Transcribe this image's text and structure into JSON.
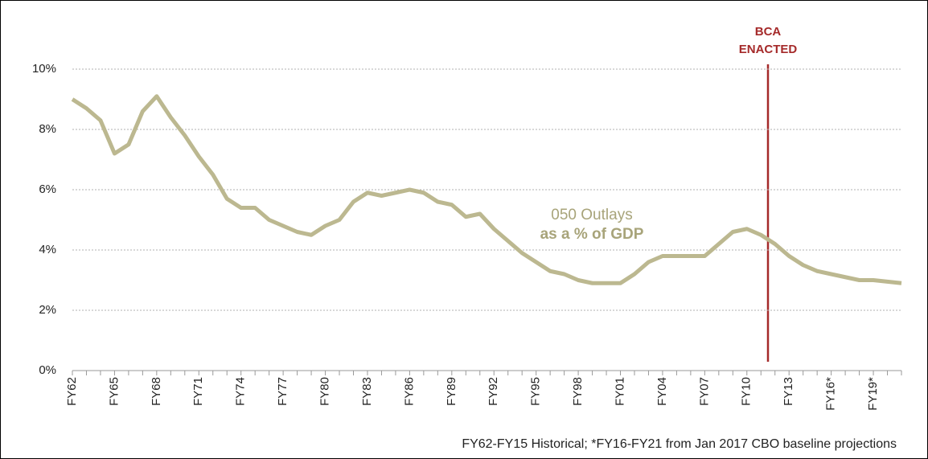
{
  "chart_data": {
    "type": "line",
    "categories": [
      "FY62",
      null,
      null,
      "FY65",
      null,
      null,
      "FY68",
      null,
      null,
      "FY71",
      null,
      null,
      "FY74",
      null,
      null,
      "FY77",
      null,
      null,
      "FY80",
      null,
      null,
      "FY83",
      null,
      null,
      "FY86",
      null,
      null,
      "FY89",
      null,
      null,
      "FY92",
      null,
      null,
      "FY95",
      null,
      null,
      "FY98",
      null,
      null,
      "FY01",
      null,
      null,
      "FY04",
      null,
      null,
      "FY07",
      null,
      null,
      "FY10",
      null,
      null,
      "FY13",
      null,
      null,
      "FY16*",
      null,
      null,
      "FY19*",
      null,
      null
    ],
    "series": [
      {
        "name": "050 Outlays as a % of GDP",
        "color": "#bcb890",
        "values": [
          9.0,
          8.7,
          8.3,
          7.2,
          7.5,
          8.6,
          9.1,
          8.4,
          7.8,
          7.1,
          6.5,
          5.7,
          5.4,
          5.4,
          5.0,
          4.8,
          4.6,
          4.5,
          4.8,
          5.0,
          5.6,
          5.9,
          5.8,
          5.9,
          6.0,
          5.9,
          5.6,
          5.5,
          5.1,
          5.2,
          4.7,
          4.3,
          3.9,
          3.6,
          3.3,
          3.2,
          3.0,
          2.9,
          2.9,
          2.9,
          3.2,
          3.6,
          3.8,
          3.8,
          3.8,
          3.8,
          4.2,
          4.6,
          4.7,
          4.5,
          4.2,
          3.8,
          3.5,
          3.3,
          3.2,
          3.1,
          3.0,
          3.0,
          2.95,
          2.9
        ]
      }
    ],
    "ylim": [
      0,
      11
    ],
    "yticks": [
      {
        "value": 0,
        "label": "0%"
      },
      {
        "value": 2,
        "label": "2%"
      },
      {
        "value": 4,
        "label": "4%"
      },
      {
        "value": 6,
        "label": "6%"
      },
      {
        "value": 8,
        "label": "8%"
      },
      {
        "value": 10,
        "label": "10%"
      }
    ],
    "grid": true,
    "annotations": {
      "event": [
        "BCA",
        "ENACTED"
      ],
      "series_label": [
        "050 Outlays",
        "as a % of GDP"
      ]
    },
    "footnote": "FY62-FY15 Historical; *FY16-FY21 from Jan 2017 CBO baseline projections"
  }
}
